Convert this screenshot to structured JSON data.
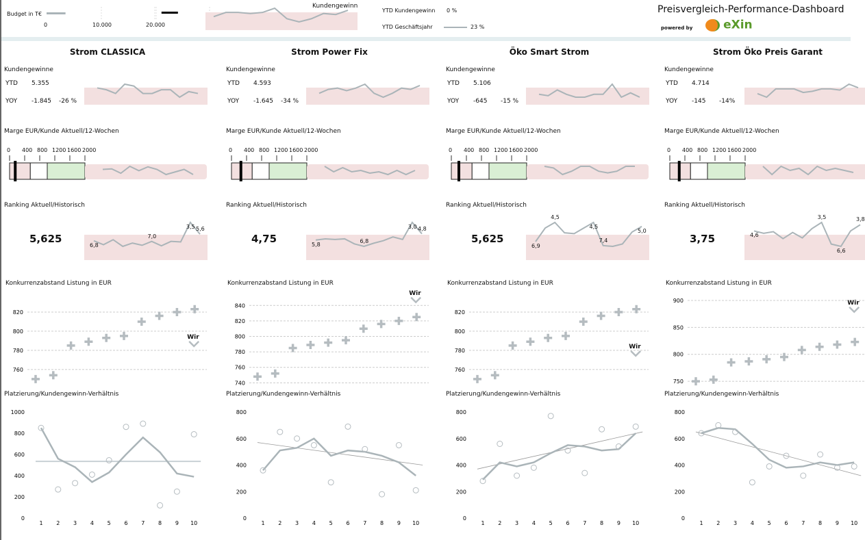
{
  "header": {
    "budget_label": "Budget in T€",
    "budget_ticks": [
      "0",
      "10.000",
      "20.000"
    ],
    "budget_value": 3500,
    "budget_target": 22000,
    "spark_label": "Kundengewinn",
    "spark": [
      5,
      7,
      7,
      6.5,
      7,
      9,
      4,
      2.5,
      4,
      6.5,
      6,
      8
    ],
    "ytd_kunden_label": "YTD Kundengewinn",
    "ytd_kunden_value": "0 %",
    "ytd_gj_label": "YTD Geschäftsjahr",
    "ytd_gj_value": "23 %",
    "title": "Preisvergleich-Performance-Dashboard",
    "powered_by": "powered by",
    "logo_text": "eXin"
  },
  "colors": {
    "line": "#aab4b8",
    "band": "#f3e0e0",
    "green": "#d9efd4",
    "logo_orange": "#f08a1c",
    "logo_green": "#5a9a2a"
  },
  "labels": {
    "kunden": "Kundengewinne",
    "ytd": "YTD",
    "yoy": "YOY",
    "marge": "Marge EUR/Kunde Aktuell/12-Wochen",
    "ranking": "Ranking Aktuell/Historisch",
    "konkurrenz": "Konkurrenzabstand Listung in EUR",
    "platz": "Platzierung/Kundengewinn-Verhältnis",
    "wir": "Wir",
    "bullet_ticks": [
      "0",
      "400",
      "800",
      "1200",
      "1600",
      "2000"
    ]
  },
  "columns": [
    {
      "title": "Strom CLASSICA",
      "ytd": "5.355",
      "yoy": "-1.845",
      "yoy_pct": "-26 %",
      "kunden_spark": [
        6,
        5.5,
        4.5,
        7,
        6.5,
        4.5,
        4.5,
        5.5,
        5.5,
        3.5,
        5,
        4.5
      ],
      "marge": {
        "bands": [
          0,
          550,
          1000,
          2000
        ],
        "value": 150,
        "spark": [
          5,
          5.2,
          3.5,
          6.2,
          4.5,
          6,
          5,
          3,
          4,
          5,
          3
        ]
      },
      "ranking": {
        "value": "5,625",
        "spark": [
          6.8,
          7.5,
          6.6,
          7.8,
          7.2,
          7.6,
          6.9,
          7.7,
          6.9,
          7.0,
          3.5,
          5.6
        ],
        "labels": [
          {
            "i": 0,
            "t": "6,8"
          },
          {
            "i": 6,
            "t": "7,0"
          },
          {
            "i": 10,
            "t": "3,5"
          },
          {
            "i": 11,
            "t": "5,6"
          }
        ]
      },
      "konkurrenz": {
        "ticks": [
          760,
          780,
          800,
          820
        ],
        "ylim": [
          742,
          835
        ],
        "values": [
          750,
          754,
          785,
          789,
          793,
          795,
          810,
          816,
          820,
          823
        ],
        "wir": 785
      },
      "platz": {
        "ticks": [
          0,
          200,
          400,
          600,
          800,
          1000
        ],
        "ylim": [
          0,
          1000
        ],
        "points": [
          850,
          270,
          330,
          410,
          545,
          860,
          890,
          120,
          250,
          790
        ],
        "line": [
          850,
          560,
          480,
          340,
          430,
          600,
          760,
          620,
          420,
          390
        ],
        "trend": [
          535,
          535
        ]
      }
    },
    {
      "title": "Strom Power Fix",
      "ytd": "4.593",
      "yoy": "-1.645",
      "yoy_pct": "-34 %",
      "kunden_spark": [
        3.5,
        5,
        5.5,
        4.5,
        5.5,
        7,
        3.5,
        2,
        3.5,
        5.5,
        5,
        6.5
      ],
      "marge": {
        "bands": [
          0,
          550,
          1000,
          2000
        ],
        "value": 250,
        "spark": [
          6,
          4,
          5.5,
          4,
          4.5,
          3.5,
          4,
          3,
          4.5,
          3,
          4.5
        ]
      },
      "ranking": {
        "value": "4,75",
        "spark": [
          5.8,
          5.6,
          5.7,
          5.6,
          6.4,
          6.8,
          6.3,
          5.9,
          5.3,
          5.7,
          3.0,
          4.8
        ],
        "labels": [
          {
            "i": 0,
            "t": "5,8"
          },
          {
            "i": 5,
            "t": "6,8"
          },
          {
            "i": 10,
            "t": "3,0"
          },
          {
            "i": 11,
            "t": "4,8"
          }
        ]
      },
      "konkurrenz": {
        "ticks": [
          740,
          760,
          780,
          800,
          820,
          840
        ],
        "ylim": [
          735,
          850
        ],
        "values": [
          748,
          752,
          785,
          789,
          792,
          795,
          810,
          816,
          820,
          825
        ],
        "wir": 845
      },
      "platz": {
        "ticks": [
          0,
          200,
          400,
          600,
          800
        ],
        "ylim": [
          0,
          800
        ],
        "points": [
          360,
          650,
          600,
          550,
          270,
          690,
          520,
          180,
          550,
          210
        ],
        "line": [
          360,
          510,
          530,
          600,
          470,
          510,
          500,
          470,
          420,
          320
        ],
        "trend": [
          570,
          400
        ]
      }
    },
    {
      "title": "Öko Smart Strom",
      "ytd": "5.106",
      "yoy": "-645",
      "yoy_pct": "-15 %",
      "kunden_spark": [
        4.5,
        4,
        6,
        4.5,
        3.5,
        3.5,
        4.5,
        4.5,
        8,
        3.5,
        5,
        3.5
      ],
      "marge": {
        "bands": [
          0,
          550,
          1000,
          2000
        ],
        "value": 200,
        "spark": [
          5.5,
          5,
          3,
          4,
          5.5,
          5.5,
          4,
          3.5,
          4,
          5.5,
          5.5
        ]
      },
      "ranking": {
        "value": "5,625",
        "spark": [
          6.9,
          5.2,
          4.5,
          5.8,
          5.9,
          5.2,
          4.5,
          7.4,
          7.5,
          7.2,
          5.7,
          5.0
        ],
        "labels": [
          {
            "i": 0,
            "t": "6,9"
          },
          {
            "i": 2,
            "t": "4,5"
          },
          {
            "i": 6,
            "t": "4,5"
          },
          {
            "i": 7,
            "t": "7,4"
          },
          {
            "i": 11,
            "t": "5,0"
          }
        ]
      },
      "konkurrenz": {
        "ticks": [
          760,
          780,
          800,
          820
        ],
        "ylim": [
          742,
          835
        ],
        "values": [
          750,
          754,
          785,
          789,
          793,
          795,
          810,
          816,
          820,
          823
        ],
        "wir": 775
      },
      "platz": {
        "ticks": [
          0,
          200,
          400,
          600,
          800
        ],
        "ylim": [
          0,
          800
        ],
        "points": [
          280,
          560,
          320,
          380,
          770,
          510,
          340,
          670,
          540,
          690
        ],
        "line": [
          290,
          420,
          390,
          420,
          490,
          550,
          540,
          510,
          520,
          640
        ],
        "trend": [
          370,
          650
        ]
      }
    },
    {
      "title": "Strom Öko Preis Garant",
      "ytd": "4.714",
      "yoy": "-145",
      "yoy_pct": "-14%",
      "kunden_spark": [
        4,
        2.5,
        6,
        6,
        6,
        4.5,
        5,
        6,
        6,
        5.5,
        8,
        6.5
      ],
      "marge": {
        "bands": [
          0,
          550,
          1000,
          2000
        ],
        "value": 250,
        "spark": [
          5.5,
          3.5,
          5.5,
          4.5,
          5,
          3.5,
          5.5,
          4.5,
          5,
          4.5,
          4
        ]
      },
      "ranking": {
        "value": "3,75",
        "spark": [
          4.6,
          4.9,
          4.7,
          5.6,
          4.8,
          5.5,
          4.3,
          3.5,
          6.3,
          6.6,
          4.6,
          3.8
        ],
        "labels": [
          {
            "i": 0,
            "t": "4,6"
          },
          {
            "i": 7,
            "t": "3,5"
          },
          {
            "i": 9,
            "t": "6,6"
          },
          {
            "i": 11,
            "t": "3,8"
          }
        ]
      },
      "konkurrenz": {
        "ticks": [
          750,
          800,
          850,
          900
        ],
        "ylim": [
          740,
          905
        ],
        "values": [
          750,
          753,
          785,
          787,
          791,
          795,
          808,
          814,
          818,
          823
        ],
        "wir": 880
      },
      "platz": {
        "ticks": [
          0,
          200,
          400,
          600,
          800
        ],
        "ylim": [
          0,
          800
        ],
        "points": [
          640,
          700,
          650,
          270,
          390,
          470,
          320,
          480,
          380,
          390
        ],
        "line": [
          640,
          680,
          670,
          560,
          440,
          380,
          390,
          420,
          400,
          420
        ],
        "trend": [
          650,
          320
        ]
      }
    }
  ],
  "x_ticks": [
    "1",
    "2",
    "3",
    "4",
    "5",
    "6",
    "7",
    "8",
    "9",
    "10"
  ]
}
